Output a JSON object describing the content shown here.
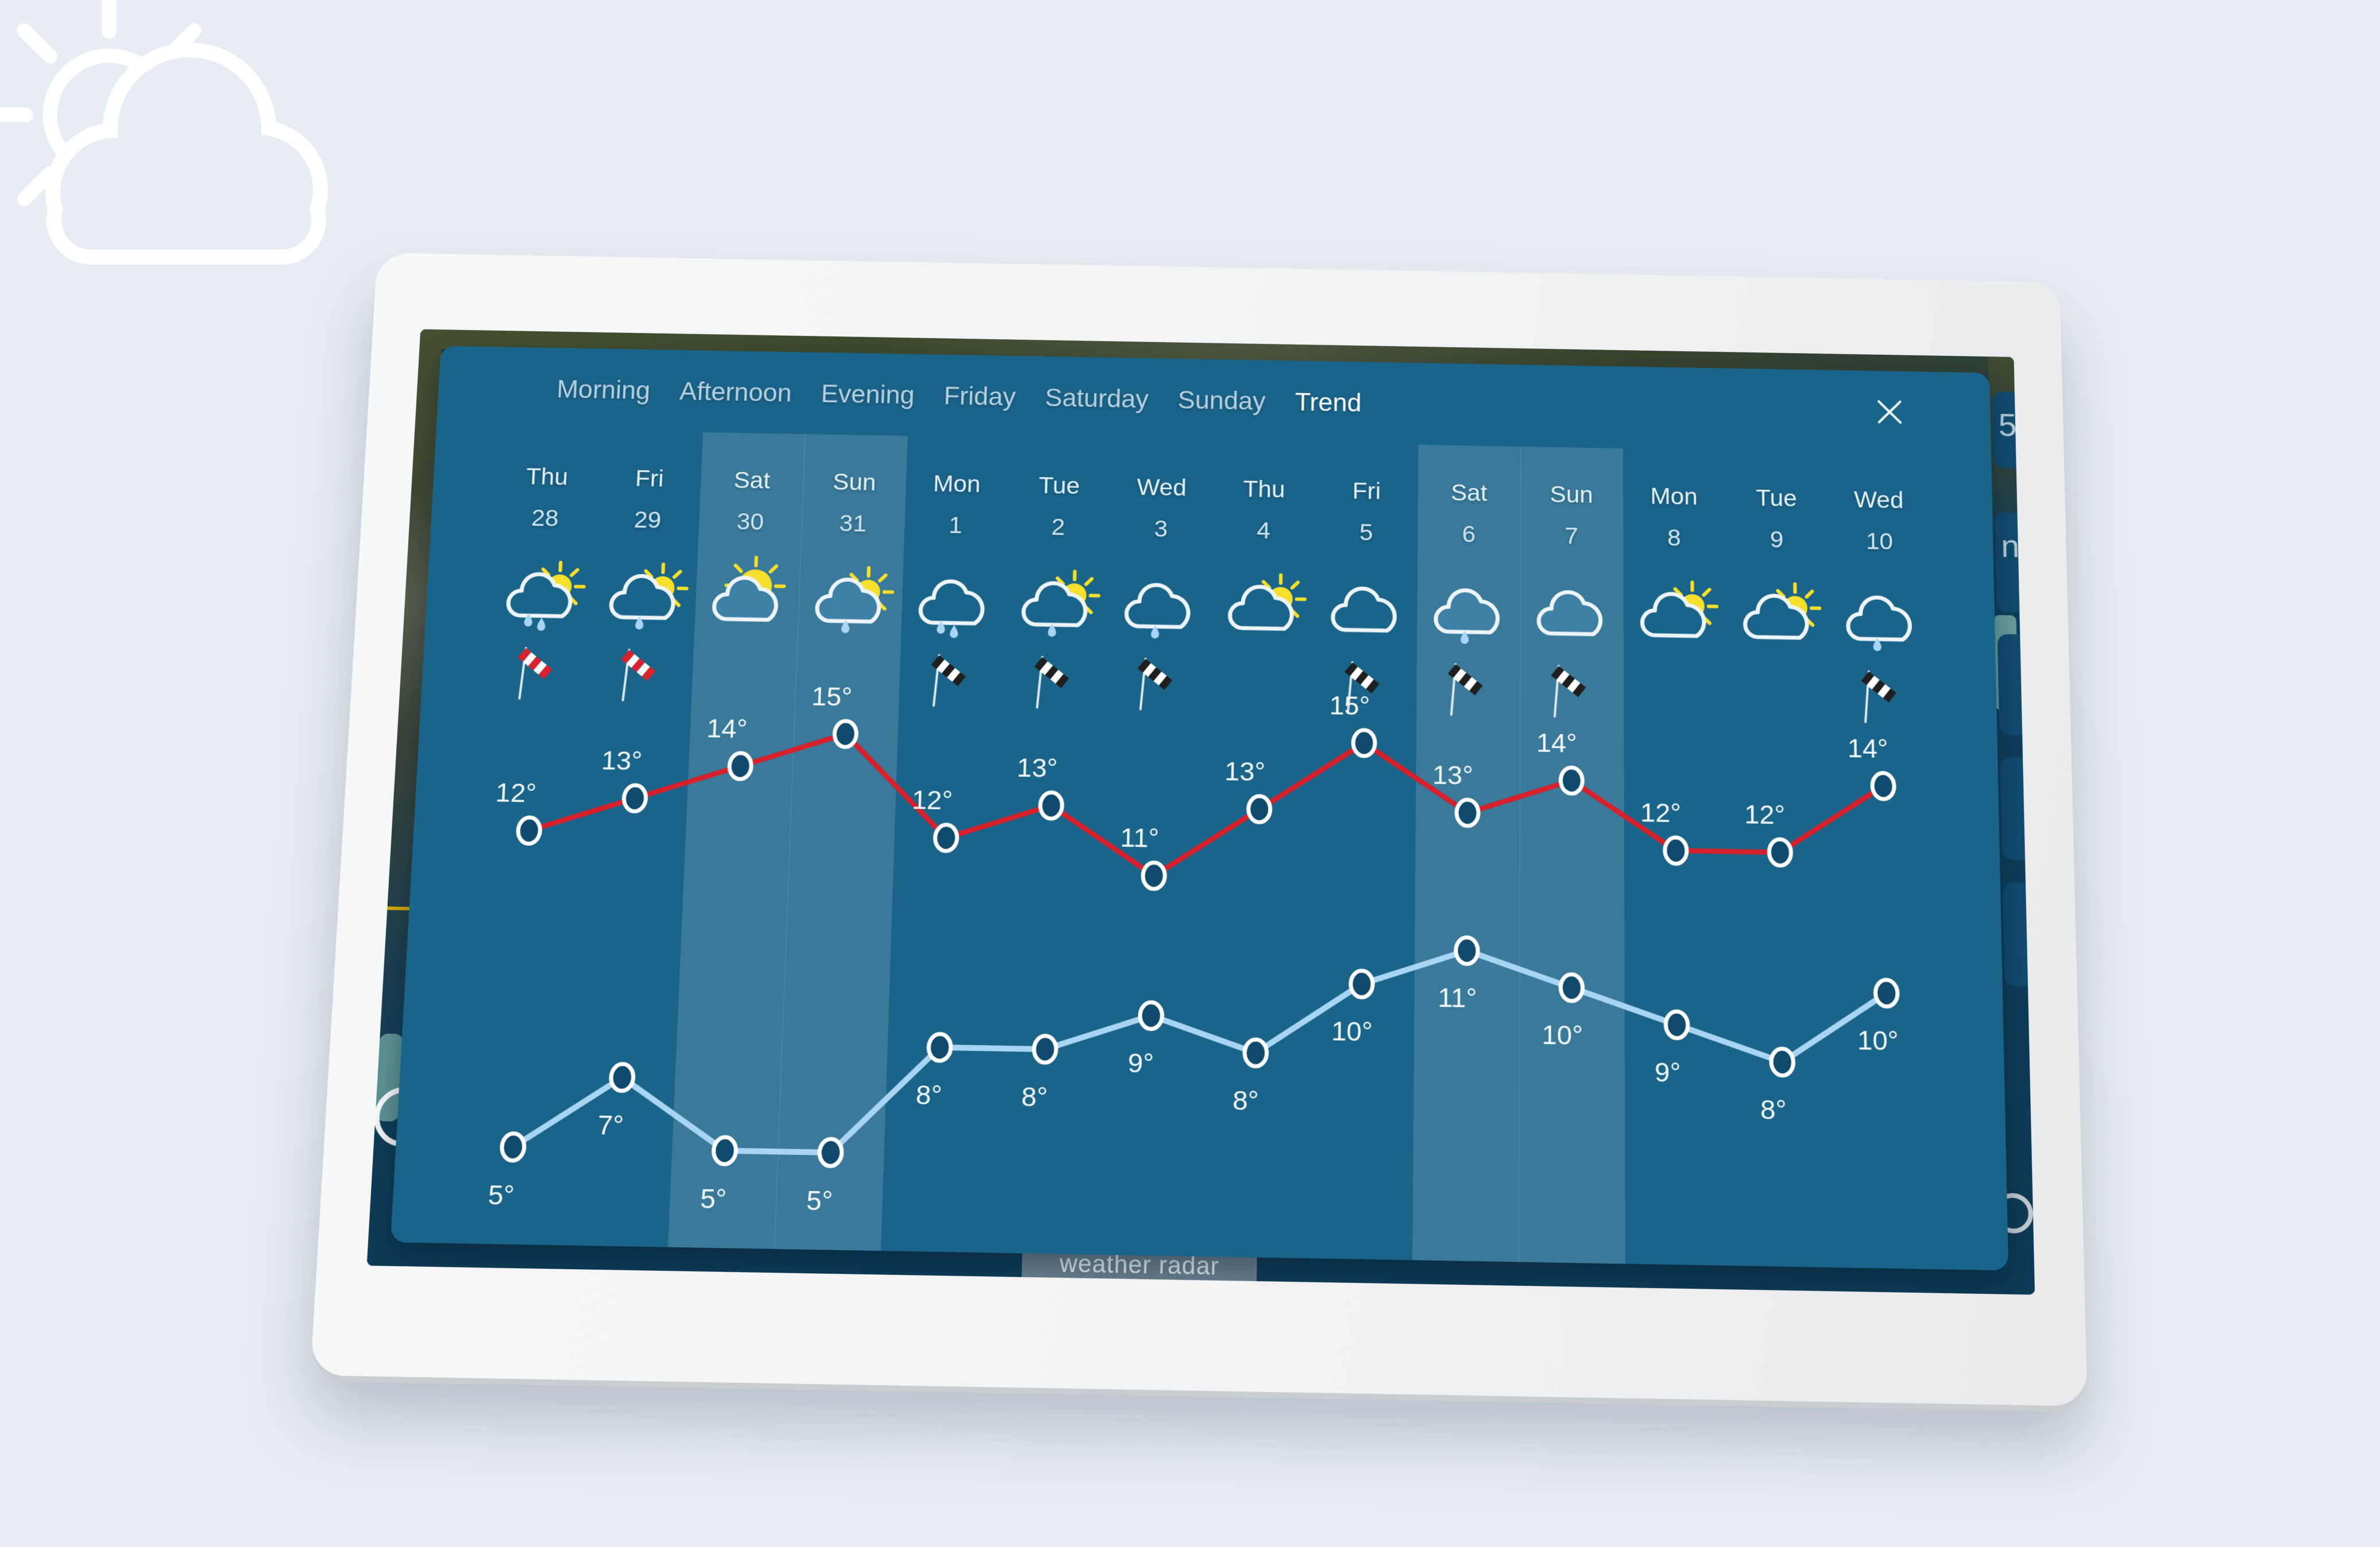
{
  "page": {
    "background": "#e8edf3"
  },
  "decoration": {
    "icon": "sun-behind-cloud"
  },
  "underlying_app": {
    "weather_radar_button": "weather radar",
    "side_button_glyphs": [
      "5",
      "n",
      "",
      "",
      ""
    ]
  },
  "trend_panel": {
    "tabs": [
      {
        "label": "Morning",
        "active": false
      },
      {
        "label": "Afternoon",
        "active": false
      },
      {
        "label": "Evening",
        "active": false
      },
      {
        "label": "Friday",
        "active": false
      },
      {
        "label": "Saturday",
        "active": false
      },
      {
        "label": "Sunday",
        "active": false
      },
      {
        "label": "Trend",
        "active": true
      }
    ],
    "close_icon": "close",
    "colors": {
      "panel": "#1a6389",
      "weekend_band": "rgba(255,255,255,0.14)",
      "cloud_fill": "#1a6389",
      "cloud_fill_weekend": "#3f80a6",
      "cloud_stroke": "#edf5fa",
      "high_line": "#d6202b",
      "low_line": "#a9d5f5",
      "marker_fill": "#0f4a6d",
      "flag_red": "#d8232e",
      "flag_dark": "#1f1f1f",
      "sun": "#f6e02c",
      "drop": "#a9d5f5"
    },
    "chart_data": {
      "type": "line",
      "title": "",
      "xlabel": "",
      "ylabel": "",
      "ylim": [
        4,
        16
      ],
      "grid": false,
      "legend": "none",
      "unit": "°",
      "categories": [
        "Thu 28",
        "Fri 29",
        "Sat 30",
        "Sun 31",
        "Mon 1",
        "Tue 2",
        "Wed 3",
        "Thu 4",
        "Fri 5",
        "Sat 6",
        "Sun 7",
        "Mon 8",
        "Tue 9",
        "Wed 10"
      ],
      "days": [
        {
          "day": "Thu",
          "date": "28",
          "icon": "sun-cloud-rain",
          "sun": true,
          "drops": 2,
          "flag": "red",
          "weekend": false
        },
        {
          "day": "Fri",
          "date": "29",
          "icon": "sun-cloud-rain",
          "sun": true,
          "drops": 1,
          "flag": "red",
          "weekend": false
        },
        {
          "day": "Sat",
          "date": "30",
          "icon": "mostly-sunny",
          "sun": "big",
          "drops": 0,
          "flag": "none",
          "weekend": true
        },
        {
          "day": "Sun",
          "date": "31",
          "icon": "sun-cloud-rain",
          "sun": true,
          "drops": 1,
          "flag": "none",
          "weekend": true
        },
        {
          "day": "Mon",
          "date": "1",
          "icon": "cloud-rain",
          "sun": false,
          "drops": 2,
          "flag": "dark",
          "weekend": false
        },
        {
          "day": "Tue",
          "date": "2",
          "icon": "sun-cloud-rain",
          "sun": true,
          "drops": 1,
          "flag": "dark",
          "weekend": false
        },
        {
          "day": "Wed",
          "date": "3",
          "icon": "cloud-rain",
          "sun": false,
          "drops": 1,
          "flag": "dark",
          "weekend": false
        },
        {
          "day": "Thu",
          "date": "4",
          "icon": "partly-sunny",
          "sun": true,
          "drops": 0,
          "flag": "none",
          "weekend": false
        },
        {
          "day": "Fri",
          "date": "5",
          "icon": "cloudy",
          "sun": false,
          "drops": 0,
          "flag": "dark",
          "weekend": false
        },
        {
          "day": "Sat",
          "date": "6",
          "icon": "cloud-rain",
          "sun": false,
          "drops": 1,
          "flag": "dark",
          "weekend": true
        },
        {
          "day": "Sun",
          "date": "7",
          "icon": "cloudy",
          "sun": false,
          "drops": 0,
          "flag": "dark",
          "weekend": true
        },
        {
          "day": "Mon",
          "date": "8",
          "icon": "partly-sunny",
          "sun": true,
          "drops": 0,
          "flag": "none",
          "weekend": false
        },
        {
          "day": "Tue",
          "date": "9",
          "icon": "partly-sunny",
          "sun": true,
          "drops": 0,
          "flag": "none",
          "weekend": false
        },
        {
          "day": "Wed",
          "date": "10",
          "icon": "cloud-rain",
          "sun": false,
          "drops": 1,
          "flag": "dark",
          "weekend": false
        }
      ],
      "series": [
        {
          "name": "high",
          "values": [
            12,
            13,
            14,
            15,
            12,
            13,
            11,
            13,
            15,
            13,
            14,
            12,
            12,
            14
          ]
        },
        {
          "name": "low",
          "values": [
            5,
            7,
            5,
            5,
            8,
            8,
            9,
            8,
            10,
            11,
            10,
            9,
            8,
            10
          ]
        }
      ]
    }
  }
}
